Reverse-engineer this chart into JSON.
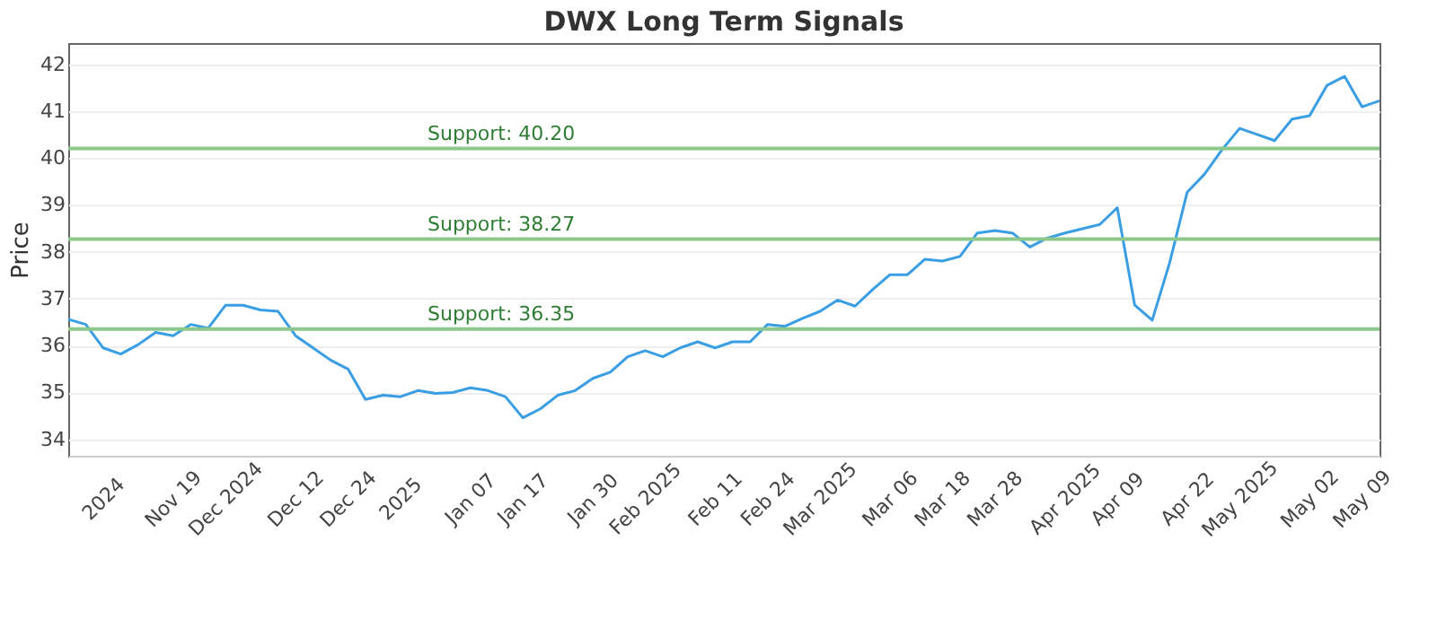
{
  "chart_data": {
    "type": "line",
    "title": "DWX Long Term Signals",
    "ylabel": "Price",
    "categories": [
      null,
      null,
      "2024",
      null,
      null,
      null,
      "Nov 19",
      null,
      null,
      "Dec 2024",
      null,
      null,
      null,
      "Dec 12",
      null,
      null,
      "Dec 24",
      null,
      null,
      "2025",
      null,
      null,
      null,
      "Jan 07",
      null,
      null,
      "Jan 17",
      null,
      null,
      null,
      "Jan 30",
      null,
      null,
      "Feb 2025",
      null,
      null,
      null,
      "Feb 11",
      null,
      null,
      "Feb 24",
      null,
      null,
      "Mar 2025",
      null,
      null,
      null,
      "Mar 06",
      null,
      null,
      "Mar 18",
      null,
      null,
      "Mar 28",
      null,
      null,
      null,
      "Apr 2025",
      null,
      null,
      "Apr 09",
      null,
      null,
      null,
      "Apr 22",
      null,
      null,
      "May 2025",
      null,
      null,
      null,
      "May 02",
      null,
      null,
      "May 09",
      null
    ],
    "series": [
      {
        "color": "#3a9ee4",
        "values": [
          36.56,
          36.45,
          35.95,
          35.82,
          36.02,
          36.28,
          36.21,
          36.45,
          36.37,
          36.86,
          36.86,
          36.76,
          36.73,
          36.21,
          35.95,
          35.69,
          35.5,
          34.85,
          34.94,
          34.91,
          35.04,
          34.98,
          35.0,
          35.1,
          35.04,
          34.91,
          34.46,
          34.65,
          34.94,
          35.04,
          35.3,
          35.43,
          35.76,
          35.89,
          35.76,
          35.95,
          36.08,
          35.95,
          36.08,
          36.08,
          36.45,
          36.41,
          36.58,
          36.73,
          36.97,
          36.84,
          37.19,
          37.51,
          37.51,
          37.84,
          37.8,
          37.9,
          38.4,
          38.45,
          38.4,
          38.1,
          38.29,
          38.4,
          38.49,
          38.58,
          38.94,
          36.86,
          36.54,
          37.77,
          39.27,
          39.66,
          40.18,
          40.63,
          40.5,
          40.37,
          40.83,
          40.9,
          41.55,
          41.74,
          41.09,
          41.22
        ]
      }
    ],
    "ylim": [
      33.65,
      42.45
    ],
    "yticks": [
      34,
      35,
      36,
      37,
      38,
      39,
      40,
      41,
      42
    ],
    "grid": "y",
    "marker": "none",
    "line_style": "solid",
    "ref_lines": [
      {
        "axis": "y",
        "value": 40.2,
        "label": "Support: 40.20",
        "color": "#8cc88c"
      },
      {
        "axis": "y",
        "value": 38.27,
        "label": "Support: 38.27",
        "color": "#8cc88c"
      },
      {
        "axis": "y",
        "value": 36.35,
        "label": "Support: 36.35",
        "color": "#8cc88c"
      }
    ]
  }
}
